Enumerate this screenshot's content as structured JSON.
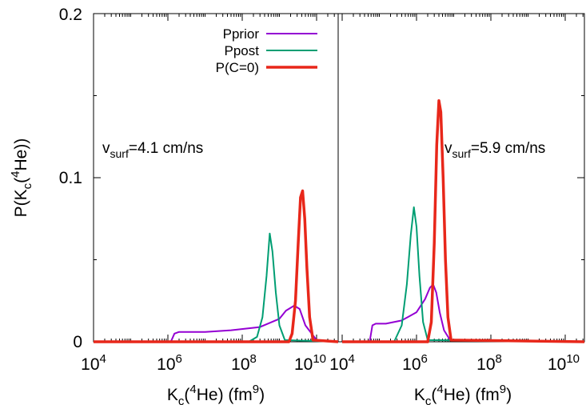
{
  "chart_data": [
    {
      "type": "line",
      "panel": "left",
      "x_scale": "log",
      "xlim": [
        10000,
        40000000000
      ],
      "ylim": [
        0,
        0.2
      ],
      "y_ticks": [
        0,
        0.1,
        0.2
      ],
      "y_tick_labels": [
        "0",
        "0.1",
        "0.2"
      ],
      "x_ticks": [
        10000,
        1000000,
        100000000,
        10000000000
      ],
      "x_tick_labels": [
        {
          "base": "10",
          "exp": "4"
        },
        {
          "base": "10",
          "exp": "6"
        },
        {
          "base": "10",
          "exp": "8"
        },
        {
          "base": "10",
          "exp": "10"
        }
      ],
      "xlabel": {
        "a": "K",
        "sub": "c",
        "b": "(",
        "sup": "4",
        "c": "He) (fm",
        "sup2": "9",
        "d": ")"
      },
      "ylabel": {
        "a": "P(K",
        "sub": "c",
        "b": "(",
        "sup": "4",
        "c": "He))"
      },
      "annotation": {
        "a": "v",
        "sub": "surf",
        "b": "=4.1 cm/ns"
      },
      "legend": {
        "placement": "top-right",
        "entries": [
          "Pprior",
          "Ppost",
          "P(C=0)"
        ]
      },
      "series": [
        {
          "name": "Pprior",
          "color": "#9400d3",
          "x": [
            10000,
            1200000,
            1500000,
            2000000,
            5000000,
            10000000,
            50000000,
            300000000,
            1000000000,
            1500000000,
            2500000000,
            3500000000,
            5000000000,
            10000000000,
            40000000000
          ],
          "y": [
            0,
            0,
            0.005,
            0.006,
            0.006,
            0.006,
            0.007,
            0.009,
            0.014,
            0.019,
            0.022,
            0.02,
            0.01,
            0.001,
            0
          ]
        },
        {
          "name": "Ppost",
          "color": "#009e73",
          "x": [
            10000,
            150000000,
            250000000,
            350000000,
            450000000,
            550000000,
            650000000,
            800000000,
            1000000000,
            1400000000,
            40000000000
          ],
          "y": [
            0,
            0,
            0.003,
            0.015,
            0.04,
            0.066,
            0.055,
            0.03,
            0.01,
            0.001,
            0
          ]
        },
        {
          "name": "P(C=0)",
          "color": "#e8271a",
          "x": [
            10000,
            1800000000,
            2200000000,
            2700000000,
            3200000000,
            3700000000,
            4200000000,
            4800000000,
            5500000000,
            6500000000,
            8000000000,
            40000000000
          ],
          "y": [
            0,
            0,
            0.005,
            0.025,
            0.06,
            0.088,
            0.092,
            0.075,
            0.045,
            0.015,
            0.001,
            0
          ]
        }
      ]
    },
    {
      "type": "line",
      "panel": "right",
      "x_scale": "log",
      "xlim": [
        10000,
        40000000000
      ],
      "ylim": [
        0,
        0.2
      ],
      "x_ticks": [
        10000,
        1000000,
        100000000,
        10000000000
      ],
      "x_tick_labels": [
        {
          "base": "10",
          "exp": "4"
        },
        {
          "base": "10",
          "exp": "6"
        },
        {
          "base": "10",
          "exp": "8"
        },
        {
          "base": "10",
          "exp": "10"
        }
      ],
      "xlabel": {
        "a": "K",
        "sub": "c",
        "b": "(",
        "sup": "4",
        "c": "He) (fm",
        "sup2": "9",
        "d": ")"
      },
      "annotation": {
        "a": "v",
        "sub": "surf",
        "b": "=5.9 cm/ns"
      },
      "series": [
        {
          "name": "Pprior",
          "color": "#9400d3",
          "x": [
            10000,
            55000,
            65000,
            80000,
            150000,
            400000,
            1000000,
            1700000,
            2300000,
            2800000,
            3400000,
            4200000,
            5500000,
            8000000,
            40000000000
          ],
          "y": [
            0,
            0,
            0.01,
            0.011,
            0.011,
            0.013,
            0.018,
            0.026,
            0.033,
            0.035,
            0.03,
            0.018,
            0.007,
            0.001,
            0
          ]
        },
        {
          "name": "Ppost",
          "color": "#009e73",
          "x": [
            10000,
            250000,
            400000,
            550000,
            700000,
            850000,
            1000000,
            1200000,
            1500000,
            2000000,
            40000000000
          ],
          "y": [
            0,
            0,
            0.01,
            0.035,
            0.065,
            0.082,
            0.07,
            0.04,
            0.012,
            0.001,
            0
          ]
        },
        {
          "name": "P(C=0)",
          "color": "#e8271a",
          "x": [
            10000,
            2000000,
            2500000,
            3000000,
            3500000,
            4000000,
            4500000,
            5200000,
            6000000,
            7000000,
            8500000,
            40000000000
          ],
          "y": [
            0,
            0,
            0.012,
            0.06,
            0.12,
            0.147,
            0.14,
            0.1,
            0.05,
            0.015,
            0.001,
            0
          ]
        }
      ]
    }
  ]
}
